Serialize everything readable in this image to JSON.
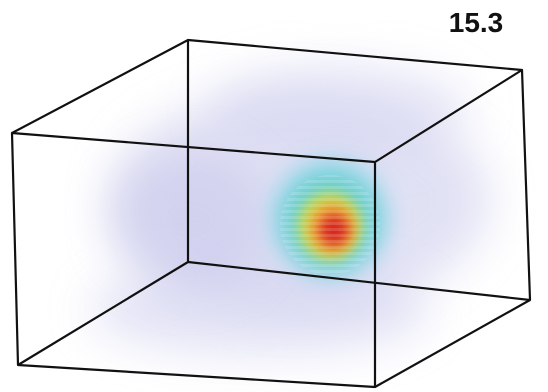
{
  "label": "15.3"
}
